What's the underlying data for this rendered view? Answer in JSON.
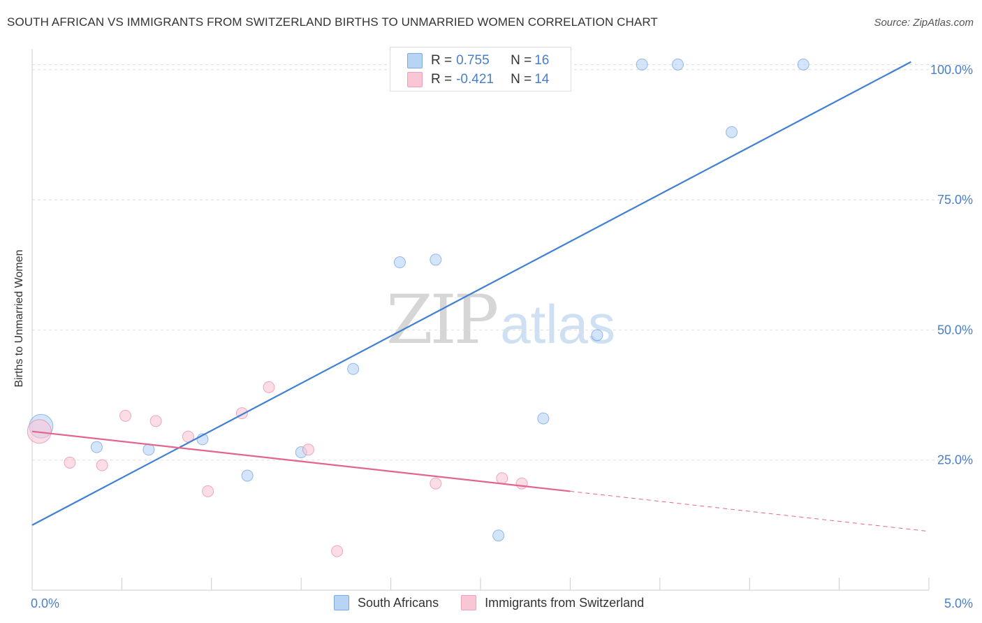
{
  "header": {
    "title": "SOUTH AFRICAN VS IMMIGRANTS FROM SWITZERLAND BIRTHS TO UNMARRIED WOMEN CORRELATION CHART",
    "source": "Source: ZipAtlas.com"
  },
  "watermark": {
    "zip": "ZIP",
    "atlas": "atlas"
  },
  "legend_top": {
    "rows": [
      {
        "r_label": "R = ",
        "r_value": "0.755",
        "n_label": "N = ",
        "n_value": "16",
        "color": "#b8d4f5"
      },
      {
        "r_label": "R = ",
        "r_value": "-0.421",
        "n_label": "N = ",
        "n_value": "14",
        "color": "#f9c6d6"
      }
    ]
  },
  "legend_bottom": {
    "items": [
      {
        "label": "South Africans",
        "color": "#b8d4f5"
      },
      {
        "label": "Immigrants from Switzerland",
        "color": "#f9c6d6"
      }
    ]
  },
  "chart_data": {
    "type": "scatter",
    "title": "SOUTH AFRICAN VS IMMIGRANTS FROM SWITZERLAND BIRTHS TO UNMARRIED WOMEN CORRELATION CHART",
    "ylabel": "Births to Unmarried Women",
    "xlabel": "",
    "xlim": [
      0,
      5
    ],
    "ylim": [
      0,
      104
    ],
    "x_tick_labels": [
      "0.0%",
      "5.0%"
    ],
    "y_ticks": [
      25,
      50,
      75,
      100
    ],
    "y_tick_labels": [
      "25.0%",
      "50.0%",
      "75.0%",
      "100.0%"
    ],
    "grid": true,
    "legend_position": "top-center",
    "series": [
      {
        "name": "South Africans",
        "color": "#4a86d8",
        "fill": "#b8d4f5",
        "points": [
          {
            "x": 0.05,
            "y": 31.5,
            "size": "large"
          },
          {
            "x": 0.36,
            "y": 27.5
          },
          {
            "x": 0.65,
            "y": 27.0
          },
          {
            "x": 0.95,
            "y": 29.0
          },
          {
            "x": 1.2,
            "y": 22.0
          },
          {
            "x": 1.5,
            "y": 26.5
          },
          {
            "x": 1.79,
            "y": 42.5
          },
          {
            "x": 2.05,
            "y": 63.0
          },
          {
            "x": 2.25,
            "y": 63.5
          },
          {
            "x": 2.6,
            "y": 10.5
          },
          {
            "x": 2.85,
            "y": 33.0
          },
          {
            "x": 3.15,
            "y": 49.0
          },
          {
            "x": 3.4,
            "y": 101.0
          },
          {
            "x": 3.6,
            "y": 101.0
          },
          {
            "x": 3.9,
            "y": 88.0
          },
          {
            "x": 4.3,
            "y": 101.0
          }
        ],
        "trend": {
          "x0": 0,
          "y0": 12.5,
          "x1": 4.9,
          "y1": 101.5
        }
      },
      {
        "name": "Immigrants from Switzerland",
        "color": "#e36a93",
        "fill": "#f9c6d6",
        "points": [
          {
            "x": 0.04,
            "y": 30.5,
            "size": "large"
          },
          {
            "x": 0.21,
            "y": 24.5
          },
          {
            "x": 0.39,
            "y": 24.0
          },
          {
            "x": 0.52,
            "y": 33.5
          },
          {
            "x": 0.69,
            "y": 32.5
          },
          {
            "x": 0.87,
            "y": 29.5
          },
          {
            "x": 0.98,
            "y": 19.0
          },
          {
            "x": 1.17,
            "y": 34.0
          },
          {
            "x": 1.32,
            "y": 39.0
          },
          {
            "x": 1.54,
            "y": 27.0
          },
          {
            "x": 1.7,
            "y": 7.5
          },
          {
            "x": 2.25,
            "y": 20.5
          },
          {
            "x": 2.62,
            "y": 21.5
          },
          {
            "x": 2.73,
            "y": 20.5
          }
        ],
        "trend": {
          "x0": 0,
          "y0": 30.5,
          "x1": 3.0,
          "y1": 19.0,
          "dashed_to_x": 5.0,
          "dashed_to_y": 11.3
        }
      }
    ]
  }
}
